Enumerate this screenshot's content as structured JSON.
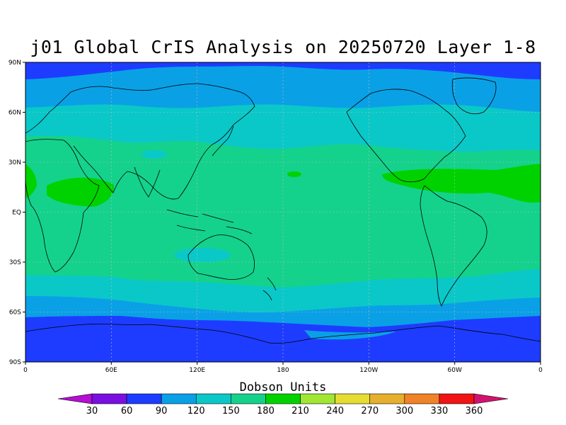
{
  "title": "j01 Global CrIS Analysis on 20250720 Layer 1-8",
  "lat_labels": [
    "90N",
    "60N",
    "30N",
    "EQ",
    "30S",
    "60S",
    "90S"
  ],
  "lon_labels": [
    "0",
    "60E",
    "120E",
    "180",
    "120W",
    "60W",
    "0"
  ],
  "colorbar": {
    "title": "Dobson Units",
    "labels": [
      "30",
      "60",
      "90",
      "120",
      "150",
      "180",
      "210",
      "240",
      "270",
      "300",
      "330",
      "360"
    ],
    "colors": [
      "#b40fd2",
      "#7a10e0",
      "#1e3cff",
      "#0aa0e6",
      "#0ac8c8",
      "#14d28c",
      "#00d200",
      "#a0e632",
      "#e6dc32",
      "#e6af2d",
      "#f08228",
      "#f01414",
      "#d2136e"
    ]
  },
  "colors": {
    "band_polar": "#1e3cff",
    "band_mid": "#0aa0e6",
    "band_sub": "#0ac8c8",
    "band_trop": "#14d28c",
    "band_high": "#00d200",
    "coast": "#000000"
  },
  "chart_data": {
    "type": "heatmap",
    "title": "j01 Global CrIS Analysis on 20250720 Layer 1-8",
    "xlabel": "",
    "ylabel": "",
    "x_range": [
      "0",
      "0"
    ],
    "y_range": [
      "90S",
      "90N"
    ],
    "grid": true,
    "legend_title": "Dobson Units",
    "legend_placement": "bottom",
    "levels": [
      30,
      60,
      90,
      120,
      150,
      180,
      210,
      240,
      270,
      300,
      330,
      360
    ]
  }
}
